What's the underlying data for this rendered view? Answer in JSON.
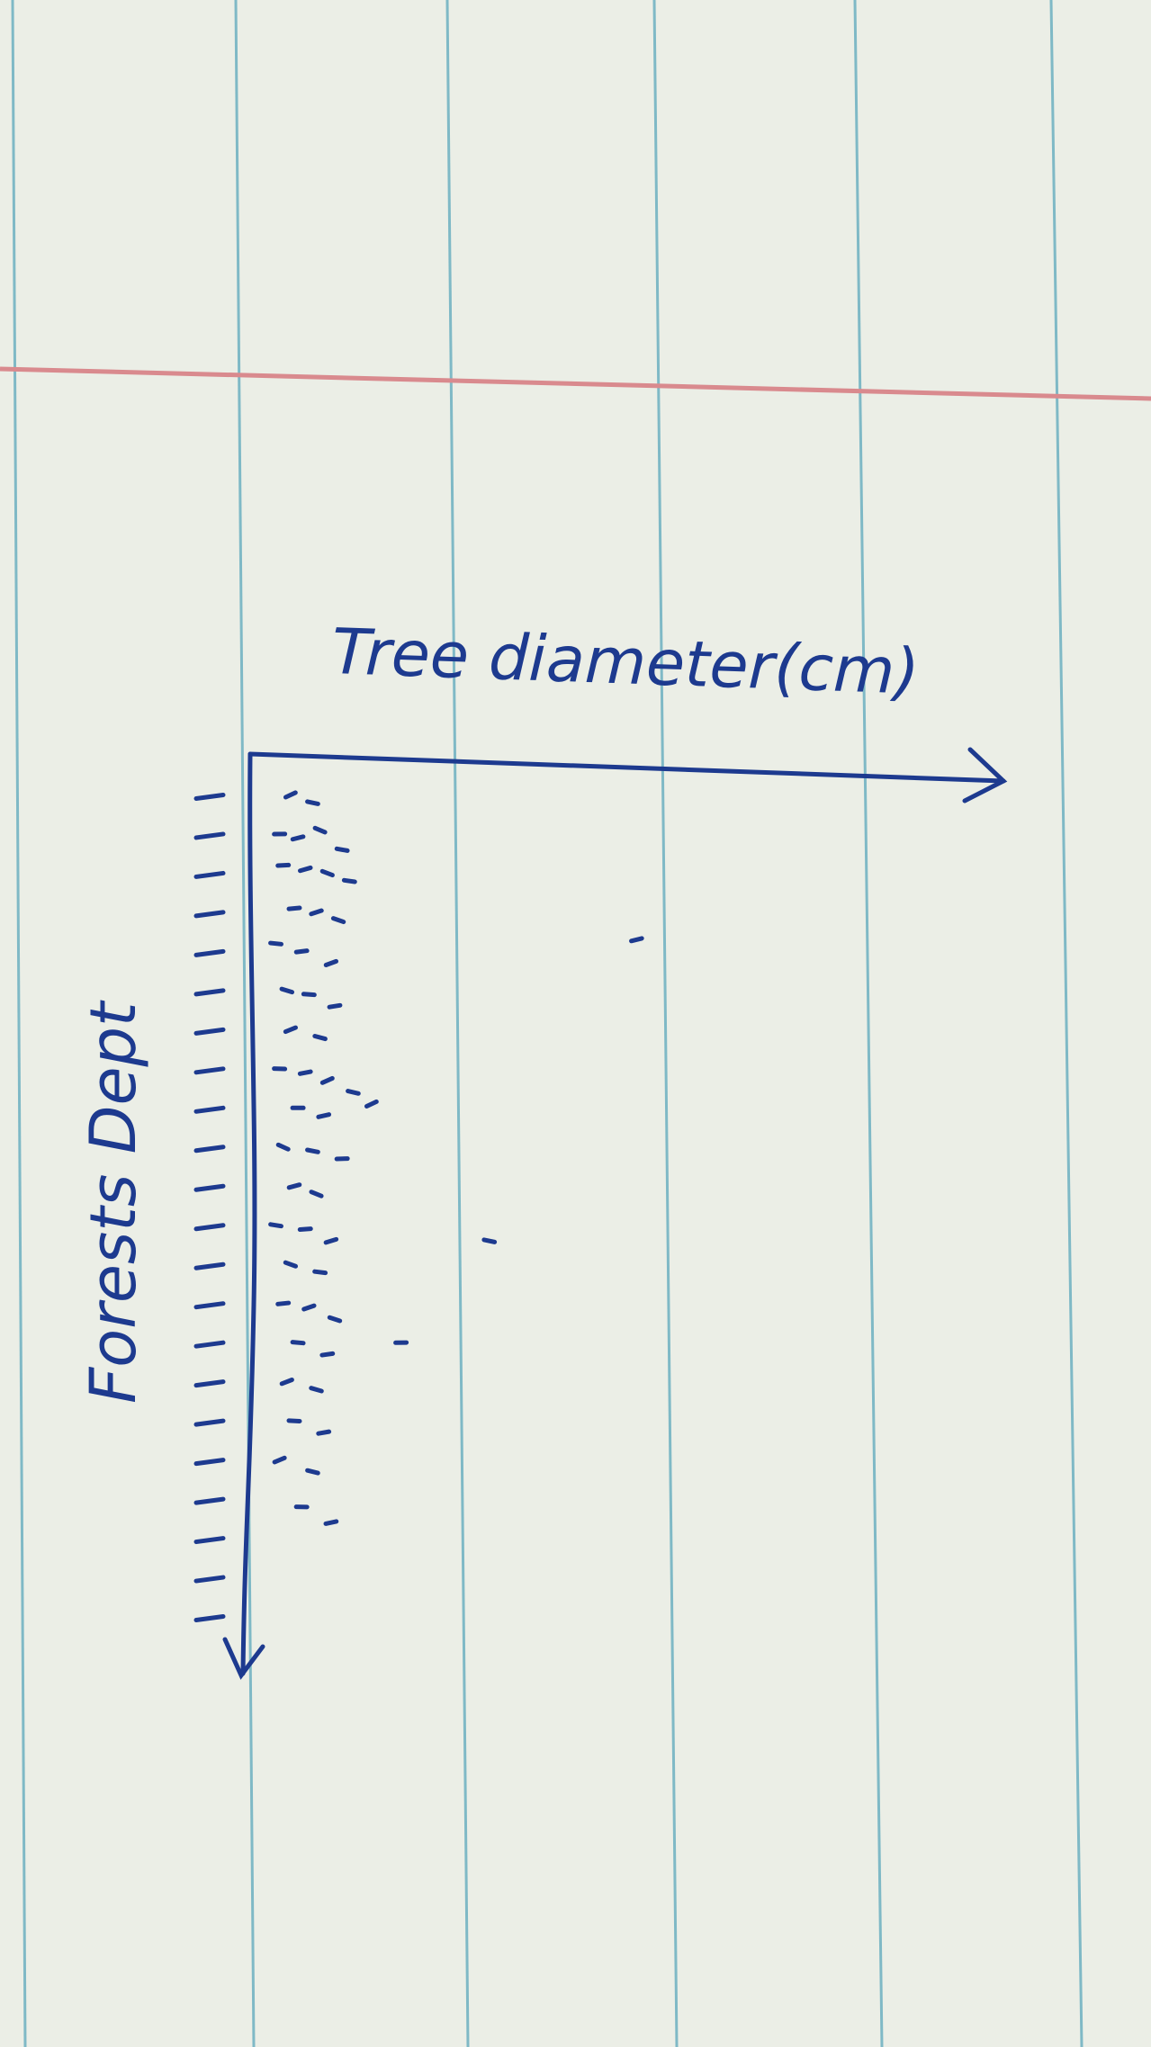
{
  "paper": {
    "background": "#ebeee6",
    "rule_color": "#7fb9c6",
    "margin_line_color": "#d98a8e",
    "ink_color": "#1d3a8f"
  },
  "chart_data": {
    "type": "scatter",
    "title": "",
    "xlabel": "Tree diameter(cm)",
    "ylabel": "Forests Dept",
    "x_axis_position": "top",
    "y_axis_direction": "downward",
    "grid": false,
    "legend": "none",
    "y_ticks": [
      1,
      2,
      3,
      4,
      5,
      6,
      7,
      8,
      9,
      10,
      11,
      12,
      13,
      14,
      15,
      16,
      17,
      18,
      19,
      20,
      21,
      22
    ],
    "xlim": [
      0,
      10
    ],
    "ylim": [
      0,
      23
    ],
    "series": [
      {
        "x": [
          0.5,
          0.8,
          0.35,
          0.6,
          0.9,
          1.2,
          0.4,
          0.7,
          1.0,
          1.3,
          0.55,
          0.85,
          1.15,
          0.3,
          0.65,
          1.05,
          0.45,
          0.75,
          1.1,
          0.5,
          0.9,
          0.35,
          0.7,
          1.0,
          1.35,
          0.6,
          0.95,
          0.4,
          0.8,
          1.2,
          0.55,
          0.85,
          0.3,
          0.7,
          1.05,
          0.5,
          0.9,
          0.4,
          0.75,
          1.1,
          0.6,
          1.0,
          0.45,
          0.85,
          0.55,
          0.95,
          0.35,
          0.8,
          0.65,
          1.05,
          1.6,
          3.2,
          2.0,
          5.2
        ],
        "y": [
          1.0,
          1.2,
          2.0,
          2.1,
          1.9,
          2.4,
          2.8,
          2.9,
          3.0,
          3.2,
          3.9,
          4.0,
          4.2,
          4.8,
          5.0,
          5.3,
          6.0,
          6.1,
          6.4,
          7.0,
          7.2,
          8.0,
          8.1,
          8.3,
          8.6,
          9.0,
          9.2,
          10.0,
          10.1,
          10.3,
          11.0,
          11.2,
          12.0,
          12.1,
          12.4,
          13.0,
          13.2,
          14.0,
          14.1,
          14.4,
          15.0,
          15.3,
          16.0,
          16.2,
          17.0,
          17.3,
          18.0,
          18.3,
          19.2,
          19.6,
          8.9,
          12.4,
          15.0,
          4.7
        ]
      }
    ]
  }
}
